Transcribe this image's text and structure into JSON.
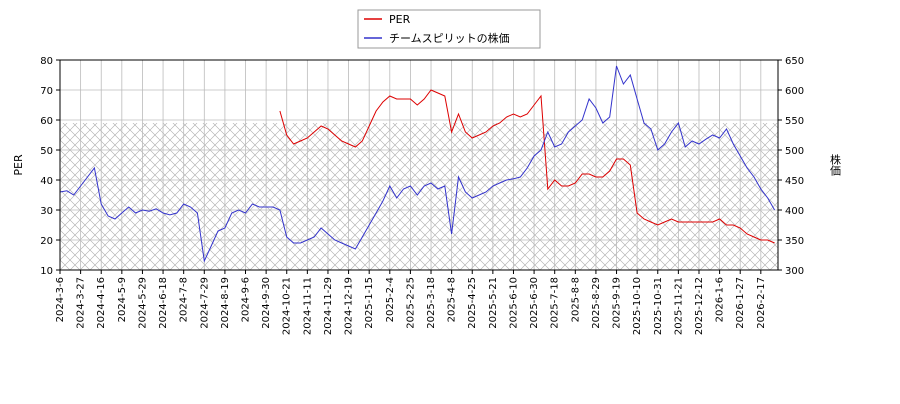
{
  "chart_data": {
    "type": "line",
    "y_label": "PER",
    "y2_label": "株価",
    "categories": [
      "2024-3-6",
      null,
      null,
      "2024-3-27",
      null,
      null,
      "2024-4-16",
      null,
      null,
      "2024-5-9",
      null,
      null,
      "2024-5-29",
      null,
      null,
      "2024-6-18",
      null,
      null,
      "2024-7-8",
      null,
      null,
      "2024-7-29",
      null,
      null,
      "2024-8-19",
      null,
      null,
      "2024-9-6",
      null,
      null,
      "2024-9-30",
      null,
      null,
      "2024-10-21",
      null,
      null,
      "2024-11-11",
      null,
      null,
      "2024-11-29",
      null,
      null,
      "2024-12-19",
      null,
      null,
      "2025-1-15",
      null,
      null,
      "2025-2-4",
      null,
      null,
      "2025-2-25",
      null,
      null,
      "2025-3-18",
      null,
      null,
      "2025-4-8",
      null,
      null,
      "2025-4-25",
      null,
      null,
      "2025-5-21",
      null,
      null,
      "2025-6-10",
      null,
      null,
      "2025-6-30",
      null,
      null,
      "2025-7-18",
      null,
      null,
      "2025-8-8",
      null,
      null,
      "2025-8-29",
      null,
      null,
      "2025-9-19",
      null,
      null,
      "2025-10-10",
      null,
      null,
      "2025-10-31",
      null,
      null,
      "2025-11-21",
      null,
      null,
      "2025-12-12",
      null,
      null,
      "2026-1-6",
      null,
      null,
      "2026-1-27",
      null,
      null,
      "2026-2-17",
      null,
      null
    ],
    "series": [
      {
        "name": "PER",
        "color": "#dd0000",
        "axis": "y",
        "values": [
          null,
          null,
          null,
          null,
          null,
          null,
          null,
          null,
          null,
          null,
          null,
          null,
          null,
          null,
          null,
          null,
          null,
          null,
          null,
          null,
          null,
          null,
          null,
          null,
          null,
          null,
          null,
          null,
          null,
          null,
          null,
          null,
          63,
          55,
          52,
          53,
          54,
          56,
          58,
          57,
          55,
          53,
          52,
          51,
          53,
          58,
          63,
          66,
          68,
          67,
          67,
          67,
          65,
          67,
          70,
          69,
          68,
          56,
          62,
          56,
          54,
          55,
          56,
          58,
          59,
          61,
          62,
          61,
          62,
          65,
          68,
          37,
          40,
          38,
          38,
          39,
          42,
          42,
          41,
          41,
          43,
          47,
          47,
          45,
          29,
          27,
          26,
          25,
          26,
          27,
          26,
          26,
          26,
          26,
          26,
          26,
          27,
          25,
          25,
          24,
          22,
          21,
          20,
          20,
          19
        ]
      },
      {
        "name": "チームスピリットの株価",
        "color": "#3333cc",
        "axis": "y2",
        "values": [
          430,
          432,
          425,
          440,
          455,
          470,
          410,
          390,
          385,
          395,
          405,
          395,
          400,
          398,
          402,
          395,
          392,
          395,
          410,
          405,
          395,
          315,
          340,
          365,
          370,
          395,
          400,
          395,
          410,
          405,
          405,
          405,
          400,
          355,
          345,
          345,
          350,
          355,
          370,
          360,
          350,
          345,
          340,
          335,
          355,
          375,
          395,
          415,
          440,
          420,
          435,
          440,
          425,
          440,
          445,
          435,
          440,
          360,
          455,
          430,
          420,
          425,
          430,
          440,
          445,
          450,
          452,
          455,
          470,
          490,
          500,
          530,
          505,
          510,
          530,
          540,
          550,
          585,
          570,
          545,
          555,
          640,
          610,
          625,
          585,
          545,
          535,
          500,
          510,
          530,
          545,
          505,
          515,
          510,
          518,
          525,
          520,
          535,
          510,
          490,
          470,
          455,
          435,
          420,
          400
        ]
      }
    ],
    "ylim": [
      10,
      80
    ],
    "yticks": [
      10,
      20,
      30,
      40,
      50,
      60,
      70,
      80
    ],
    "y2lim": [
      300,
      650
    ],
    "y2ticks": [
      300,
      350,
      400,
      450,
      500,
      550,
      600,
      650
    ],
    "grid": true,
    "legend": "top"
  }
}
